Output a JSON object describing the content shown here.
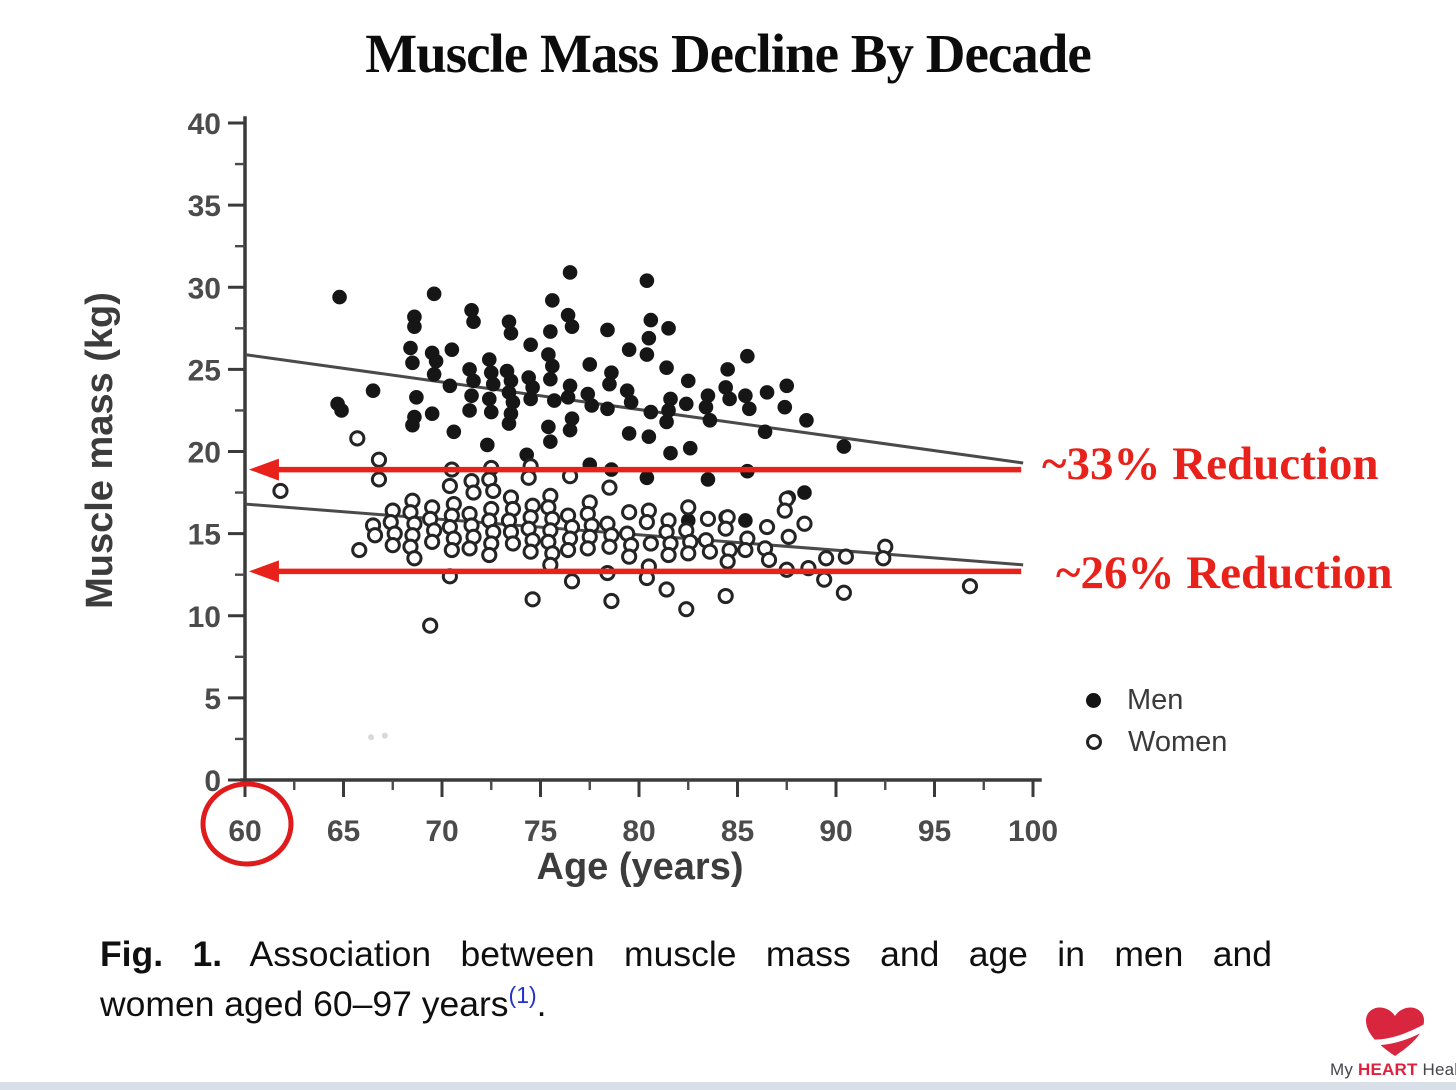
{
  "page": {
    "title": "Muscle Mass Decline By Decade"
  },
  "annotations": {
    "reduction_men": "~33% Reduction",
    "reduction_women": "~26% Reduction",
    "annotation_color": "#e8211a",
    "circled_x_tick": "60"
  },
  "legend": {
    "men": "Men",
    "women": "Women"
  },
  "caption": {
    "fig_label": "Fig. 1.",
    "line1_rest": "Association between muscle mass and age in men and",
    "line2": "women aged 60–97 years",
    "ref": "(1)",
    "period": ".",
    "ref_color": "#2233cc"
  },
  "footer": {
    "brand_my": "My ",
    "brand_heart": "HEART",
    "brand_health": " Health",
    "heart_color": "#d7263d"
  },
  "chart_data": {
    "type": "scatter",
    "title": "Muscle Mass Decline By Decade",
    "xlabel": "Age  (years)",
    "ylabel": "Muscle mass (kg)",
    "xlim": [
      60,
      100
    ],
    "ylim": [
      0,
      40
    ],
    "x_ticks": [
      60,
      65,
      70,
      75,
      80,
      85,
      90,
      95,
      100
    ],
    "y_ticks": [
      0,
      5,
      10,
      15,
      20,
      25,
      30,
      35,
      40
    ],
    "minor_tick_step": 2.5,
    "grid": false,
    "legend_position": "lower right",
    "series": [
      {
        "name": "Men",
        "marker": "filled-circle",
        "color": "#161616",
        "points": [
          [
            64.8,
            29.4
          ],
          [
            64.7,
            22.9
          ],
          [
            64.9,
            22.5
          ],
          [
            66.5,
            23.7
          ],
          [
            68.4,
            26.3
          ],
          [
            68.6,
            28.2
          ],
          [
            68.6,
            27.6
          ],
          [
            68.5,
            25.4
          ],
          [
            68.7,
            23.3
          ],
          [
            68.6,
            22.1
          ],
          [
            68.5,
            21.6
          ],
          [
            69.6,
            29.6
          ],
          [
            69.5,
            26.0
          ],
          [
            69.7,
            25.5
          ],
          [
            69.6,
            24.7
          ],
          [
            69.5,
            22.3
          ],
          [
            70.5,
            26.2
          ],
          [
            70.4,
            24.0
          ],
          [
            70.6,
            21.2
          ],
          [
            71.5,
            28.6
          ],
          [
            71.6,
            27.9
          ],
          [
            71.4,
            25.0
          ],
          [
            71.6,
            24.3
          ],
          [
            71.5,
            23.4
          ],
          [
            71.4,
            22.5
          ],
          [
            72.4,
            25.6
          ],
          [
            72.5,
            24.8
          ],
          [
            72.6,
            24.1
          ],
          [
            72.4,
            23.2
          ],
          [
            72.5,
            22.4
          ],
          [
            72.3,
            20.4
          ],
          [
            73.4,
            27.9
          ],
          [
            73.5,
            27.2
          ],
          [
            73.3,
            24.9
          ],
          [
            73.5,
            24.3
          ],
          [
            73.4,
            23.6
          ],
          [
            73.6,
            23.0
          ],
          [
            73.5,
            22.3
          ],
          [
            73.4,
            21.7
          ],
          [
            74.5,
            26.5
          ],
          [
            74.4,
            24.5
          ],
          [
            74.6,
            23.9
          ],
          [
            74.5,
            23.2
          ],
          [
            74.3,
            19.8
          ],
          [
            75.6,
            29.2
          ],
          [
            75.5,
            27.3
          ],
          [
            75.4,
            25.9
          ],
          [
            75.6,
            25.2
          ],
          [
            75.5,
            24.4
          ],
          [
            75.7,
            23.1
          ],
          [
            75.4,
            21.5
          ],
          [
            75.5,
            20.6
          ],
          [
            76.5,
            30.9
          ],
          [
            76.4,
            28.3
          ],
          [
            76.6,
            27.6
          ],
          [
            76.5,
            24.0
          ],
          [
            76.4,
            23.3
          ],
          [
            76.6,
            22.0
          ],
          [
            76.5,
            21.3
          ],
          [
            77.5,
            25.3
          ],
          [
            77.4,
            23.5
          ],
          [
            77.6,
            22.8
          ],
          [
            77.5,
            19.2
          ],
          [
            78.4,
            27.4
          ],
          [
            78.6,
            24.8
          ],
          [
            78.5,
            24.1
          ],
          [
            78.4,
            22.6
          ],
          [
            78.6,
            18.9
          ],
          [
            79.5,
            26.2
          ],
          [
            79.4,
            23.7
          ],
          [
            79.6,
            23.0
          ],
          [
            79.5,
            21.1
          ],
          [
            80.4,
            30.4
          ],
          [
            80.6,
            28.0
          ],
          [
            80.5,
            26.9
          ],
          [
            80.4,
            25.9
          ],
          [
            80.6,
            22.4
          ],
          [
            80.5,
            20.9
          ],
          [
            80.4,
            18.4
          ],
          [
            81.5,
            27.5
          ],
          [
            81.4,
            25.1
          ],
          [
            81.6,
            23.2
          ],
          [
            81.5,
            22.5
          ],
          [
            81.4,
            21.8
          ],
          [
            81.6,
            19.9
          ],
          [
            82.5,
            24.3
          ],
          [
            82.4,
            22.9
          ],
          [
            82.6,
            20.2
          ],
          [
            82.5,
            15.8
          ],
          [
            83.5,
            23.4
          ],
          [
            83.4,
            22.7
          ],
          [
            83.6,
            21.9
          ],
          [
            83.5,
            18.3
          ],
          [
            84.5,
            25.0
          ],
          [
            84.4,
            23.9
          ],
          [
            84.6,
            23.2
          ],
          [
            84.4,
            16.0
          ],
          [
            85.5,
            25.8
          ],
          [
            85.4,
            23.4
          ],
          [
            85.6,
            22.6
          ],
          [
            85.5,
            18.8
          ],
          [
            85.4,
            15.8
          ],
          [
            86.5,
            23.6
          ],
          [
            86.4,
            21.2
          ],
          [
            87.5,
            24.0
          ],
          [
            87.4,
            22.7
          ],
          [
            87.6,
            17.2
          ],
          [
            88.5,
            21.9
          ],
          [
            88.4,
            17.5
          ],
          [
            90.4,
            20.3
          ]
        ]
      },
      {
        "name": "Women",
        "marker": "open-circle",
        "color": "#242424",
        "points": [
          [
            61.8,
            17.6
          ],
          [
            65.7,
            20.8
          ],
          [
            65.8,
            14.0
          ],
          [
            66.5,
            15.5
          ],
          [
            66.6,
            14.9
          ],
          [
            66.8,
            19.5
          ],
          [
            66.8,
            18.3
          ],
          [
            67.5,
            16.4
          ],
          [
            67.4,
            15.7
          ],
          [
            67.6,
            15.0
          ],
          [
            67.5,
            14.3
          ],
          [
            68.5,
            17.0
          ],
          [
            68.4,
            16.3
          ],
          [
            68.6,
            15.6
          ],
          [
            68.5,
            14.9
          ],
          [
            68.4,
            14.2
          ],
          [
            68.6,
            13.5
          ],
          [
            69.5,
            16.6
          ],
          [
            69.4,
            15.9
          ],
          [
            69.6,
            15.2
          ],
          [
            69.5,
            14.5
          ],
          [
            69.4,
            9.4
          ],
          [
            70.5,
            18.9
          ],
          [
            70.4,
            17.9
          ],
          [
            70.6,
            16.8
          ],
          [
            70.5,
            16.1
          ],
          [
            70.4,
            15.4
          ],
          [
            70.6,
            14.7
          ],
          [
            70.5,
            14.0
          ],
          [
            70.4,
            12.4
          ],
          [
            71.5,
            18.2
          ],
          [
            71.6,
            17.5
          ],
          [
            71.4,
            16.2
          ],
          [
            71.5,
            15.5
          ],
          [
            71.6,
            14.8
          ],
          [
            71.4,
            14.1
          ],
          [
            72.5,
            19.0
          ],
          [
            72.4,
            18.3
          ],
          [
            72.6,
            17.6
          ],
          [
            72.5,
            16.5
          ],
          [
            72.4,
            15.8
          ],
          [
            72.6,
            15.1
          ],
          [
            72.5,
            14.4
          ],
          [
            72.4,
            13.7
          ],
          [
            73.5,
            17.2
          ],
          [
            73.6,
            16.5
          ],
          [
            73.4,
            15.8
          ],
          [
            73.5,
            15.1
          ],
          [
            73.6,
            14.4
          ],
          [
            74.5,
            19.1
          ],
          [
            74.4,
            18.4
          ],
          [
            74.6,
            16.7
          ],
          [
            74.5,
            16.0
          ],
          [
            74.4,
            15.3
          ],
          [
            74.6,
            14.6
          ],
          [
            74.5,
            13.9
          ],
          [
            74.6,
            11.0
          ],
          [
            75.5,
            17.3
          ],
          [
            75.4,
            16.6
          ],
          [
            75.6,
            15.9
          ],
          [
            75.5,
            15.2
          ],
          [
            75.4,
            14.5
          ],
          [
            75.6,
            13.8
          ],
          [
            75.5,
            13.1
          ],
          [
            76.5,
            18.5
          ],
          [
            76.4,
            16.1
          ],
          [
            76.6,
            15.4
          ],
          [
            76.5,
            14.7
          ],
          [
            76.4,
            14.0
          ],
          [
            76.6,
            12.1
          ],
          [
            77.5,
            16.9
          ],
          [
            77.4,
            16.2
          ],
          [
            77.6,
            15.5
          ],
          [
            77.5,
            14.8
          ],
          [
            77.4,
            14.1
          ],
          [
            78.5,
            17.8
          ],
          [
            78.4,
            15.6
          ],
          [
            78.6,
            14.9
          ],
          [
            78.5,
            14.2
          ],
          [
            78.4,
            12.6
          ],
          [
            78.6,
            10.9
          ],
          [
            79.5,
            16.3
          ],
          [
            79.4,
            15.0
          ],
          [
            79.6,
            14.3
          ],
          [
            79.5,
            13.6
          ],
          [
            80.5,
            16.4
          ],
          [
            80.4,
            15.7
          ],
          [
            80.6,
            14.4
          ],
          [
            80.5,
            13.0
          ],
          [
            80.4,
            12.3
          ],
          [
            81.5,
            15.8
          ],
          [
            81.4,
            15.1
          ],
          [
            81.6,
            14.4
          ],
          [
            81.5,
            13.7
          ],
          [
            81.4,
            11.6
          ],
          [
            82.5,
            16.6
          ],
          [
            82.4,
            15.2
          ],
          [
            82.6,
            14.5
          ],
          [
            82.5,
            13.8
          ],
          [
            82.4,
            10.4
          ],
          [
            83.5,
            15.9
          ],
          [
            83.4,
            14.6
          ],
          [
            83.6,
            13.9
          ],
          [
            84.5,
            16.0
          ],
          [
            84.4,
            15.3
          ],
          [
            84.6,
            14.0
          ],
          [
            84.5,
            13.3
          ],
          [
            84.4,
            11.2
          ],
          [
            85.5,
            14.7
          ],
          [
            85.4,
            14.0
          ],
          [
            86.5,
            15.4
          ],
          [
            86.4,
            14.1
          ],
          [
            86.6,
            13.4
          ],
          [
            87.5,
            17.1
          ],
          [
            87.4,
            16.4
          ],
          [
            87.6,
            14.8
          ],
          [
            87.5,
            12.8
          ],
          [
            88.4,
            15.6
          ],
          [
            88.6,
            12.9
          ],
          [
            89.5,
            13.5
          ],
          [
            89.4,
            12.2
          ],
          [
            90.5,
            13.6
          ],
          [
            90.4,
            11.4
          ],
          [
            92.5,
            14.2
          ],
          [
            92.4,
            13.5
          ],
          [
            96.8,
            11.8
          ]
        ]
      }
    ],
    "trend_lines": [
      {
        "series": "Men",
        "from": [
          60,
          25.9
        ],
        "to": [
          99.5,
          19.3
        ]
      },
      {
        "series": "Women",
        "from": [
          60,
          16.8
        ],
        "to": [
          99.5,
          13.1
        ]
      }
    ],
    "arrows": [
      {
        "y": 18.9,
        "from_age": 99.4,
        "to_age": 60.2,
        "label": "~33% Reduction"
      },
      {
        "y": 12.7,
        "from_age": 99.4,
        "to_age": 60.2,
        "label": "~26% Reduction"
      }
    ],
    "artifact_dots": [
      [
        66.4,
        2.6
      ],
      [
        67.1,
        2.7
      ]
    ]
  }
}
